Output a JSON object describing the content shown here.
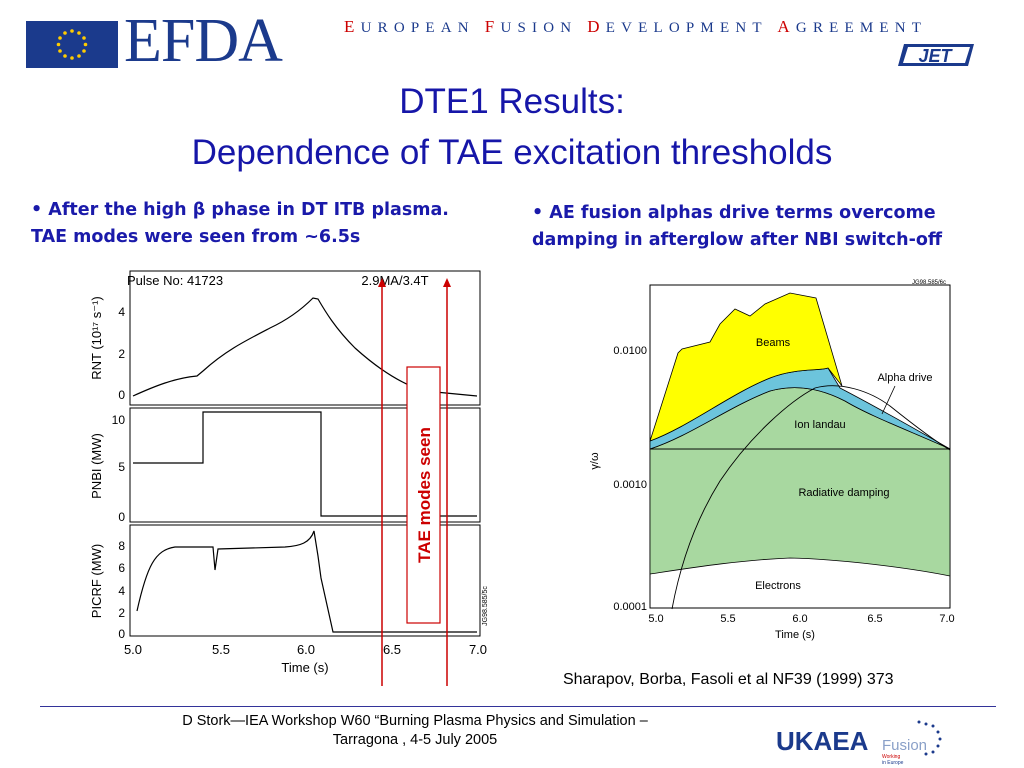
{
  "header": {
    "logo_text": "EFDA",
    "full_name_parts": [
      {
        "initial": "E",
        "rest": "UROPEAN"
      },
      {
        "initial": "F",
        "rest": "USION"
      },
      {
        "initial": "D",
        "rest": "EVELOPMENT"
      },
      {
        "initial": "A",
        "rest": "GREEMENT"
      }
    ],
    "jet_logo": "JET"
  },
  "title": {
    "line1": "DTE1 Results:",
    "line2": "Dependence of TAE excitation thresholds"
  },
  "bullets": {
    "left_line1": "• After the high β phase in DT ITB plasma.",
    "left_line2": "TAE modes were seen from ~6.5s",
    "right_line1": "• AE fusion alphas drive terms  overcome",
    "right_line2": "damping in afterglow after NBI switch-off"
  },
  "left_figure": {
    "pulse_label": "Pulse No: 41723",
    "params_label": "2.9MA/3.4T",
    "annotation": "TAE modes seen",
    "ref_code": "JG98.585/5c",
    "xlabel": "Time (s)",
    "x_ticks": [
      "5.0",
      "5.5",
      "6.0",
      "6.5",
      "7.0"
    ],
    "panels": [
      {
        "ylabel": "RNT (10¹⁷ s⁻¹)",
        "y_ticks": [
          "0",
          "2",
          "4"
        ]
      },
      {
        "ylabel": "PNBI (MW)",
        "y_ticks": [
          "0",
          "5",
          "10"
        ]
      },
      {
        "ylabel": "PICRF (MW)",
        "y_ticks": [
          "0",
          "2",
          "4",
          "6",
          "8"
        ]
      }
    ]
  },
  "right_figure": {
    "ref_code": "JG98.585/6c",
    "xlabel": "Time (s)",
    "ylabel": "γ/ω",
    "x_ticks": [
      "5.0",
      "5.5",
      "6.0",
      "6.5",
      "7.0"
    ],
    "y_ticks": [
      "0.0001",
      "0.0010",
      "0.0100"
    ],
    "labels": {
      "beams": "Beams",
      "alpha_drive": "Alpha drive",
      "ion_landau": "Ion landau",
      "radiative": "Radiative damping",
      "electrons": "Electrons"
    },
    "colors": {
      "beams": "#ffff00",
      "alpha": "#6cc4dc",
      "damping": "#a8d8a0"
    }
  },
  "citation": "Sharapov, Borba, Fasoli et al  NF39 (1999) 373",
  "footer": {
    "line1": "D Stork—IEA Workshop W60 “Burning Plasma Physics and Simulation –",
    "line2": "Tarragona , 4-5 July 2005"
  },
  "ukaea_logo": {
    "name": "UKAEA",
    "fusion": "Fusion",
    "tagline1": "Working",
    "tagline2": "in Europe"
  }
}
